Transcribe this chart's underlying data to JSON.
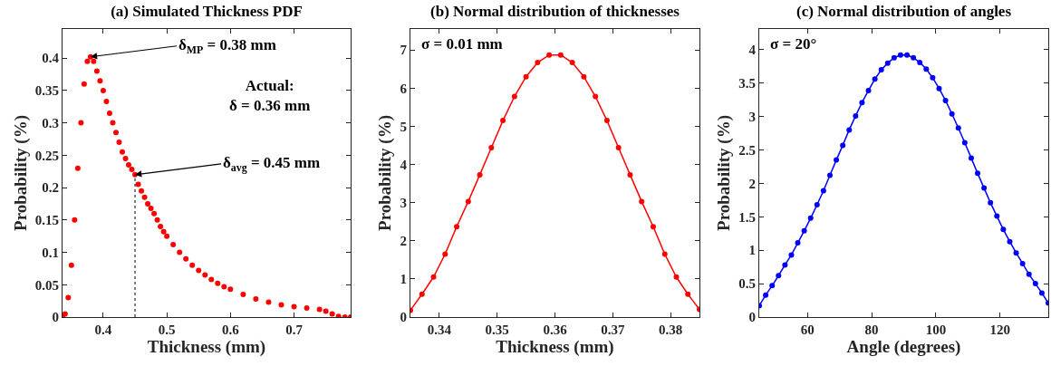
{
  "chart_data": [
    {
      "type": "scatter",
      "title": "(a) Simulated Thickness PDF",
      "xlabel": "Thickness (mm)",
      "ylabel": "Probability (%)",
      "x": [
        0.336,
        0.34,
        0.345,
        0.35,
        0.355,
        0.36,
        0.365,
        0.37,
        0.375,
        0.38,
        0.385,
        0.39,
        0.395,
        0.4,
        0.405,
        0.41,
        0.415,
        0.42,
        0.425,
        0.43,
        0.435,
        0.44,
        0.445,
        0.45,
        0.455,
        0.46,
        0.465,
        0.47,
        0.475,
        0.48,
        0.485,
        0.49,
        0.495,
        0.5,
        0.51,
        0.52,
        0.53,
        0.54,
        0.55,
        0.56,
        0.57,
        0.58,
        0.59,
        0.6,
        0.62,
        0.64,
        0.66,
        0.68,
        0.7,
        0.72,
        0.74,
        0.75,
        0.76,
        0.77,
        0.78,
        0.789
      ],
      "series": [
        {
          "color": "#ff0000",
          "values": [
            0,
            0.005,
            0.03,
            0.08,
            0.15,
            0.23,
            0.3,
            0.36,
            0.395,
            0.402,
            0.395,
            0.38,
            0.365,
            0.35,
            0.333,
            0.315,
            0.3,
            0.285,
            0.27,
            0.255,
            0.245,
            0.235,
            0.228,
            0.22,
            0.205,
            0.195,
            0.185,
            0.175,
            0.168,
            0.16,
            0.15,
            0.14,
            0.132,
            0.125,
            0.112,
            0.1,
            0.09,
            0.08,
            0.072,
            0.065,
            0.058,
            0.052,
            0.047,
            0.043,
            0.035,
            0.028,
            0.023,
            0.019,
            0.016,
            0.014,
            0.012,
            0.009,
            0.005,
            0.001,
            0,
            0
          ]
        }
      ],
      "xlim": [
        0.336,
        0.789
      ],
      "xticks": [
        0.4,
        0.5,
        0.6,
        0.7
      ],
      "ylim": [
        0,
        0.445
      ],
      "yticks": [
        0,
        0.05,
        0.1,
        0.15,
        0.2,
        0.25,
        0.3,
        0.35,
        0.4
      ],
      "marker": "circle",
      "grid": false,
      "ref_lines": [
        {
          "axis": "x",
          "value": 0.45,
          "line_style": "dotted",
          "color": "#000000"
        }
      ],
      "annotations": [
        {
          "text": "δ$_{MP}$ = 0.38 mm",
          "x": 0.38,
          "y": 0.402
        },
        {
          "text": "δ$_{avg}$ = 0.45 mm",
          "x": 0.45,
          "y": 0.22
        },
        "Actual:\nδ = 0.36 mm"
      ]
    },
    {
      "type": "line",
      "title": "(b) Normal distribution of thicknesses",
      "xlabel": "Thickness (mm)",
      "ylabel": "Probability (%)",
      "x": [
        0.335,
        0.337,
        0.339,
        0.341,
        0.343,
        0.345,
        0.347,
        0.349,
        0.351,
        0.353,
        0.355,
        0.357,
        0.359,
        0.361,
        0.363,
        0.365,
        0.367,
        0.369,
        0.371,
        0.373,
        0.375,
        0.377,
        0.379,
        0.381,
        0.383,
        0.385
      ],
      "series": [
        {
          "color": "#ff0000",
          "values": [
            0.18,
            0.6,
            1.05,
            1.65,
            2.37,
            3.03,
            3.73,
            4.44,
            5.15,
            5.78,
            6.3,
            6.67,
            6.87,
            6.87,
            6.67,
            6.3,
            5.78,
            5.15,
            4.44,
            3.73,
            3.03,
            2.37,
            1.65,
            1.05,
            0.6,
            0.2
          ]
        }
      ],
      "xlim": [
        0.335,
        0.385
      ],
      "xticks": [
        0.34,
        0.35,
        0.36,
        0.37,
        0.38
      ],
      "ylim": [
        0,
        7.55
      ],
      "yticks": [
        0,
        1,
        2,
        3,
        4,
        5,
        6,
        7
      ],
      "marker": "circle",
      "line_style": "solid",
      "grid": false,
      "annotations": [
        "σ = 0.01 mm"
      ]
    },
    {
      "type": "line",
      "title": "(c) Normal distribution of angles",
      "xlabel": "Angle (degrees)",
      "ylabel": "Probability (%)",
      "x": [
        45,
        47,
        49,
        51,
        53,
        55,
        57,
        59,
        61,
        63,
        65,
        67,
        69,
        71,
        73,
        75,
        77,
        79,
        81,
        83,
        85,
        87,
        89,
        91,
        93,
        95,
        97,
        99,
        101,
        103,
        105,
        107,
        109,
        111,
        113,
        115,
        117,
        119,
        121,
        123,
        125,
        127,
        129,
        131,
        133,
        135
      ],
      "series": [
        {
          "color": "#0000ff",
          "values": [
            0.17,
            0.33,
            0.47,
            0.62,
            0.78,
            0.93,
            1.11,
            1.29,
            1.48,
            1.68,
            1.89,
            2.12,
            2.35,
            2.57,
            2.8,
            3.01,
            3.21,
            3.39,
            3.56,
            3.7,
            3.8,
            3.88,
            3.92,
            3.92,
            3.88,
            3.81,
            3.71,
            3.58,
            3.42,
            3.24,
            3.04,
            2.83,
            2.61,
            2.38,
            2.15,
            1.93,
            1.71,
            1.51,
            1.31,
            1.13,
            0.96,
            0.8,
            0.64,
            0.5,
            0.36,
            0.21
          ]
        }
      ],
      "xlim": [
        45,
        135
      ],
      "xticks": [
        60,
        80,
        100,
        120
      ],
      "ylim": [
        0,
        4.31
      ],
      "yticks": [
        0,
        0.5,
        1,
        1.5,
        2,
        2.5,
        3,
        3.5,
        4
      ],
      "marker": "circle",
      "line_style": "solid",
      "grid": false,
      "annotations": [
        "σ = 20°"
      ]
    }
  ]
}
